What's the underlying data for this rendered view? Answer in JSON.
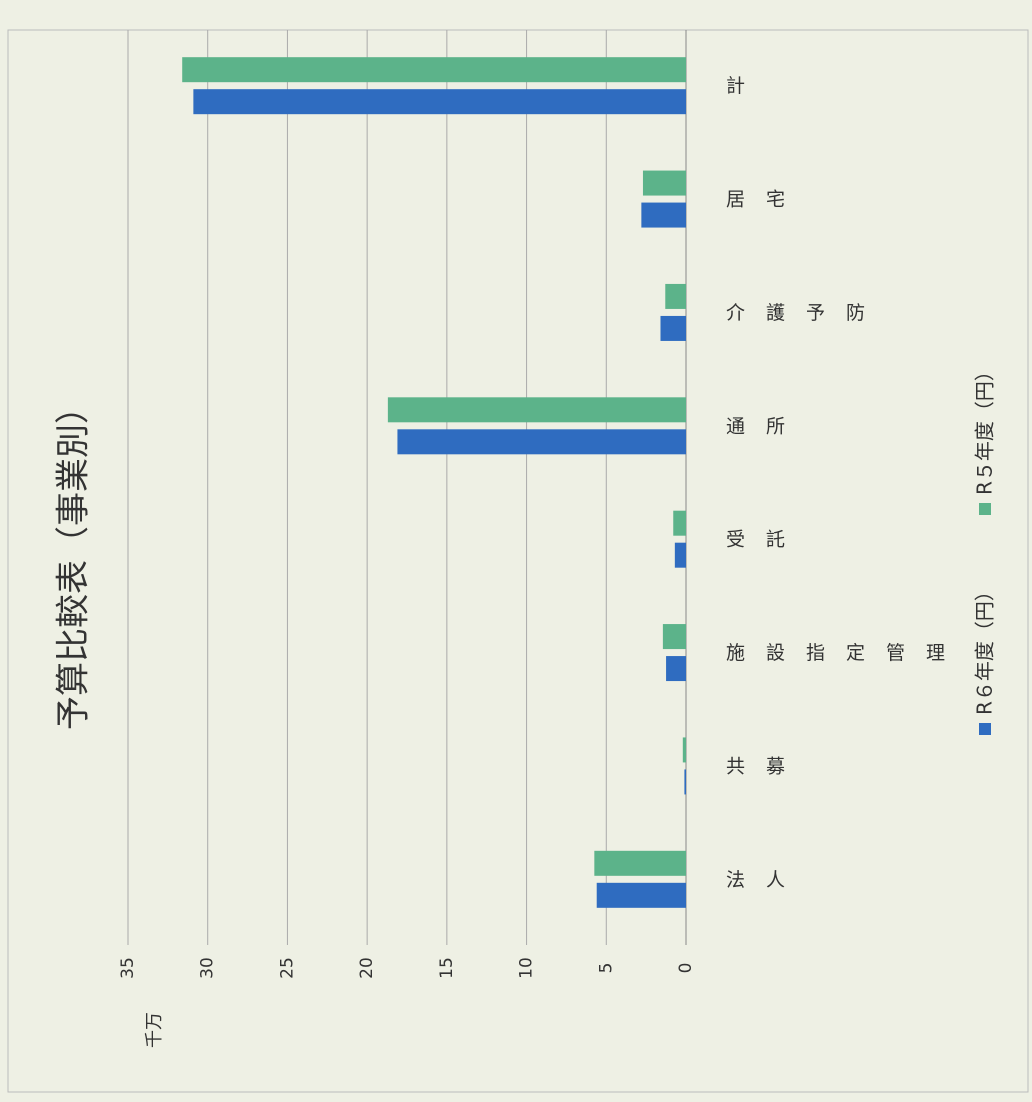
{
  "chart_data": {
    "type": "bar",
    "title": "予算比較表（事業別）",
    "y_label": "千万",
    "categories": [
      "法人",
      "共募",
      "施設指定管理",
      "受託",
      "通所",
      "介護予防",
      "居宅",
      "計"
    ],
    "series": [
      {
        "name": "R６年度（円）",
        "color": "#2f6cc0",
        "values": [
          5.6,
          0.1,
          1.25,
          0.7,
          18.1,
          1.6,
          2.8,
          30.9
        ]
      },
      {
        "name": "R５年度（円）",
        "color": "#5cb38a",
        "values": [
          5.75,
          0.2,
          1.45,
          0.8,
          18.7,
          1.3,
          2.7,
          31.6
        ]
      }
    ],
    "ylim": [
      0,
      35
    ],
    "yticks": [
      0,
      5,
      10,
      15,
      20,
      25,
      30,
      35
    ],
    "grid": true,
    "legend": "bottom"
  }
}
